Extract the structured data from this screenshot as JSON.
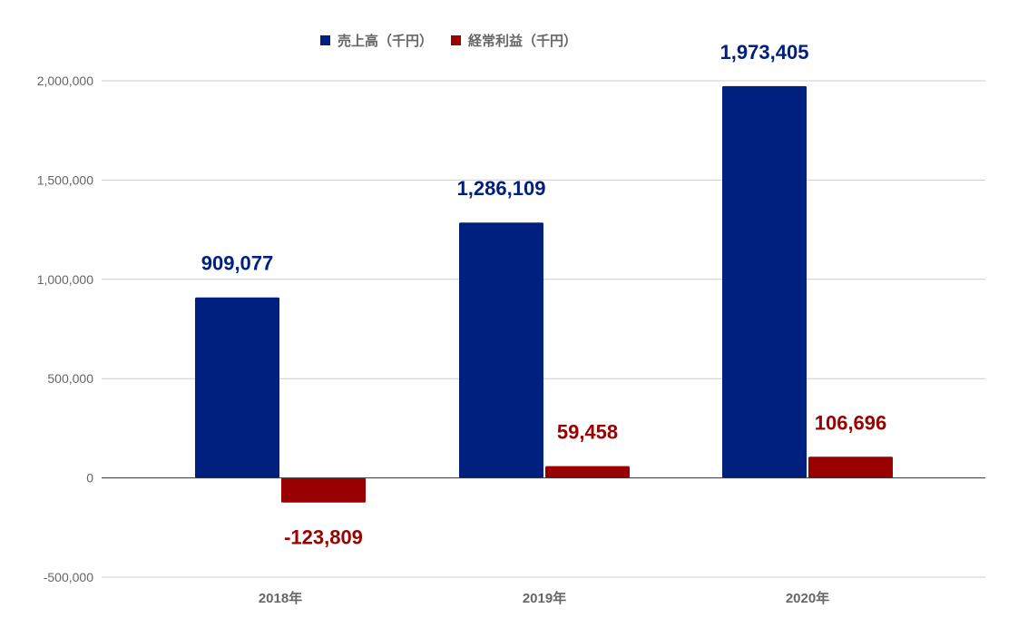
{
  "chart_data": {
    "type": "bar",
    "categories": [
      "2018年",
      "2019年",
      "2020年"
    ],
    "series": [
      {
        "name": "売上高（千円）",
        "values": [
          909077,
          1286109,
          1973405
        ],
        "value_labels": [
          "909,077",
          "1,286,109",
          "1,973,405"
        ],
        "color": "#002080"
      },
      {
        "name": "経常利益（千円）",
        "values": [
          -123809,
          59458,
          106696
        ],
        "value_labels": [
          "-123,809",
          "59,458",
          "106,696"
        ],
        "color": "#990000"
      }
    ],
    "title": "",
    "xlabel": "",
    "ylabel": "",
    "ylim": [
      -500000,
      2000000
    ],
    "y_ticks": [
      {
        "value": 2000000,
        "label": "2,000,000"
      },
      {
        "value": 1500000,
        "label": "1,500,000"
      },
      {
        "value": 1000000,
        "label": "1,000,000"
      },
      {
        "value": 500000,
        "label": "500,000"
      },
      {
        "value": 0,
        "label": "0"
      },
      {
        "value": -500000,
        "label": "-500,000"
      }
    ],
    "grid": true,
    "legend_position": "top-center",
    "colors": {
      "grid": "#cccccc",
      "baseline": "#333333",
      "tick_text": "#666666"
    }
  }
}
